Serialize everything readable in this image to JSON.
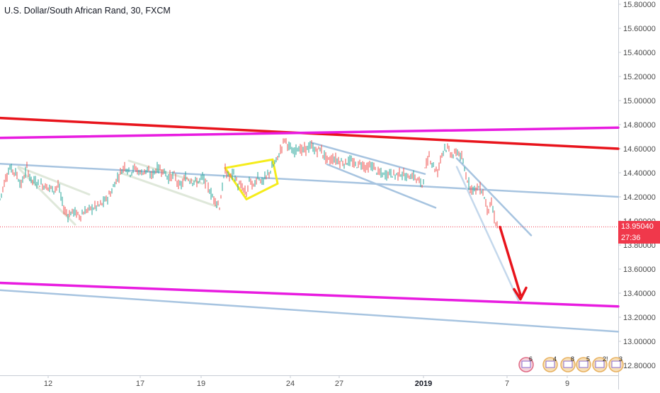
{
  "title": "U.S. Dollar/South African Rand, 30, FXCM",
  "chart_data": {
    "type": "candlestick",
    "instrument": "U.S. Dollar/South African Rand",
    "interval": "30",
    "source": "FXCM",
    "ylim": [
      12.72,
      15.88
    ],
    "y_ticks": [
      "15.80000",
      "15.60000",
      "15.40000",
      "15.20000",
      "15.00000",
      "14.80000",
      "14.60000",
      "14.40000",
      "14.20000",
      "14.00000",
      "13.80000",
      "13.60000",
      "13.40000",
      "13.20000",
      "13.00000",
      "12.80000"
    ],
    "x_ticks": [
      "12",
      "17",
      "19",
      "24",
      "27",
      "2019",
      "7",
      "9"
    ],
    "last_price": "13.95040",
    "countdown": "27:36",
    "last_price_color": "#f0384b",
    "price_path": [
      [
        0,
        14.18
      ],
      [
        8,
        14.36
      ],
      [
        14,
        14.44
      ],
      [
        22,
        14.4
      ],
      [
        30,
        14.3
      ],
      [
        38,
        14.44
      ],
      [
        44,
        14.34
      ],
      [
        52,
        14.32
      ],
      [
        60,
        14.3
      ],
      [
        68,
        14.28
      ],
      [
        76,
        14.26
      ],
      [
        82,
        14.3
      ],
      [
        90,
        14.1
      ],
      [
        96,
        14.05
      ],
      [
        104,
        14.08
      ],
      [
        112,
        14.04
      ],
      [
        120,
        14.08
      ],
      [
        128,
        14.1
      ],
      [
        136,
        14.12
      ],
      [
        144,
        14.14
      ],
      [
        150,
        14.18
      ],
      [
        158,
        14.25
      ],
      [
        164,
        14.34
      ],
      [
        170,
        14.4
      ],
      [
        176,
        14.46
      ],
      [
        184,
        14.4
      ],
      [
        190,
        14.44
      ],
      [
        198,
        14.4
      ],
      [
        206,
        14.42
      ],
      [
        214,
        14.38
      ],
      [
        222,
        14.44
      ],
      [
        230,
        14.42
      ],
      [
        238,
        14.36
      ],
      [
        246,
        14.38
      ],
      [
        254,
        14.28
      ],
      [
        262,
        14.36
      ],
      [
        270,
        14.34
      ],
      [
        278,
        14.32
      ],
      [
        286,
        14.36
      ],
      [
        294,
        14.28
      ],
      [
        300,
        14.2
      ],
      [
        306,
        14.16
      ],
      [
        310,
        14.12
      ],
      [
        314,
        14.28
      ],
      [
        318,
        14.42
      ],
      [
        324,
        14.36
      ],
      [
        330,
        14.4
      ],
      [
        336,
        14.3
      ],
      [
        342,
        14.28
      ],
      [
        348,
        14.22
      ],
      [
        352,
        14.34
      ],
      [
        358,
        14.28
      ],
      [
        364,
        14.38
      ],
      [
        370,
        14.32
      ],
      [
        378,
        14.38
      ],
      [
        386,
        14.46
      ],
      [
        392,
        14.52
      ],
      [
        398,
        14.62
      ],
      [
        402,
        14.68
      ],
      [
        408,
        14.62
      ],
      [
        414,
        14.56
      ],
      [
        420,
        14.62
      ],
      [
        426,
        14.58
      ],
      [
        432,
        14.6
      ],
      [
        440,
        14.62
      ],
      [
        446,
        14.58
      ],
      [
        452,
        14.6
      ],
      [
        458,
        14.54
      ],
      [
        464,
        14.5
      ],
      [
        470,
        14.52
      ],
      [
        478,
        14.5
      ],
      [
        486,
        14.48
      ],
      [
        494,
        14.5
      ],
      [
        502,
        14.46
      ],
      [
        510,
        14.48
      ],
      [
        518,
        14.44
      ],
      [
        526,
        14.46
      ],
      [
        534,
        14.4
      ],
      [
        542,
        14.38
      ],
      [
        550,
        14.4
      ],
      [
        558,
        14.38
      ],
      [
        566,
        14.4
      ],
      [
        574,
        14.36
      ],
      [
        582,
        14.38
      ],
      [
        590,
        14.34
      ],
      [
        596,
        14.3
      ],
      [
        600,
        14.42
      ],
      [
        606,
        14.54
      ],
      [
        612,
        14.46
      ],
      [
        618,
        14.4
      ],
      [
        622,
        14.52
      ],
      [
        628,
        14.62
      ],
      [
        634,
        14.58
      ],
      [
        640,
        14.54
      ],
      [
        646,
        14.58
      ],
      [
        652,
        14.52
      ],
      [
        658,
        14.38
      ],
      [
        664,
        14.28
      ],
      [
        670,
        14.26
      ],
      [
        676,
        14.28
      ],
      [
        682,
        14.24
      ],
      [
        688,
        14.1
      ],
      [
        694,
        14.14
      ],
      [
        700,
        13.98
      ],
      [
        704,
        13.95
      ]
    ],
    "trendlines": [
      {
        "x1": 0,
        "y1": 14.855,
        "x2": 873,
        "y2": 14.6,
        "color": "#e8141c",
        "width": 3.5
      },
      {
        "x1": 0,
        "y1": 14.69,
        "x2": 873,
        "y2": 14.775,
        "color": "#e81ce0",
        "width": 3.5
      },
      {
        "x1": 0,
        "y1": 13.485,
        "x2": 873,
        "y2": 13.29,
        "color": "#e81ce0",
        "width": 3.5
      },
      {
        "x1": 0,
        "y1": 14.475,
        "x2": 873,
        "y2": 14.2,
        "color": "#a7c4e0",
        "width": 2.5
      },
      {
        "x1": 0,
        "y1": 13.425,
        "x2": 873,
        "y2": 13.08,
        "color": "#a7c4e0",
        "width": 2.5
      },
      {
        "x1": 440,
        "y1": 14.65,
        "x2": 600,
        "y2": 14.39,
        "color": "#a7c4e0",
        "width": 2.5
      },
      {
        "x1": 462,
        "y1": 14.47,
        "x2": 615,
        "y2": 14.11,
        "color": "#a7c4e0",
        "width": 2.5
      },
      {
        "x1": 645,
        "y1": 14.52,
        "x2": 750,
        "y2": 13.88,
        "color": "#a7c4e0",
        "width": 2.5
      },
      {
        "x1": 645,
        "y1": 14.45,
        "x2": 732,
        "y2": 13.34,
        "color": "#c4d8ec",
        "width": 2.5
      },
      {
        "x1": 26,
        "y1": 14.45,
        "x2": 126,
        "y2": 14.22,
        "color": "#dfe8da",
        "width": 3
      },
      {
        "x1": 26,
        "y1": 14.44,
        "x2": 106,
        "y2": 13.97,
        "color": "#dfe8da",
        "width": 3
      },
      {
        "x1": 182,
        "y1": 14.5,
        "x2": 286,
        "y2": 14.31,
        "color": "#dfe8da",
        "width": 3
      },
      {
        "x1": 170,
        "y1": 14.4,
        "x2": 306,
        "y2": 14.12,
        "color": "#dfe8da",
        "width": 3
      },
      {
        "x1": 318,
        "y1": 14.44,
        "x2": 385,
        "y2": 14.51,
        "color": "#f5ec1c",
        "width": 3
      },
      {
        "x1": 318,
        "y1": 14.44,
        "x2": 348,
        "y2": 14.18,
        "color": "#f5ec1c",
        "width": 3
      },
      {
        "x1": 348,
        "y1": 14.18,
        "x2": 392,
        "y2": 14.31,
        "color": "#f5ec1c",
        "width": 3
      },
      {
        "x1": 385,
        "y1": 14.51,
        "x2": 392,
        "y2": 14.31,
        "color": "#f5ec1c",
        "width": 3
      }
    ],
    "arrow": {
      "x1": 706,
      "y1": 13.95,
      "x2": 735,
      "y2": 13.35,
      "color": "#e8141c"
    },
    "calendar_counts": [
      "6",
      "4",
      "8",
      "5",
      "2!",
      "3"
    ]
  }
}
